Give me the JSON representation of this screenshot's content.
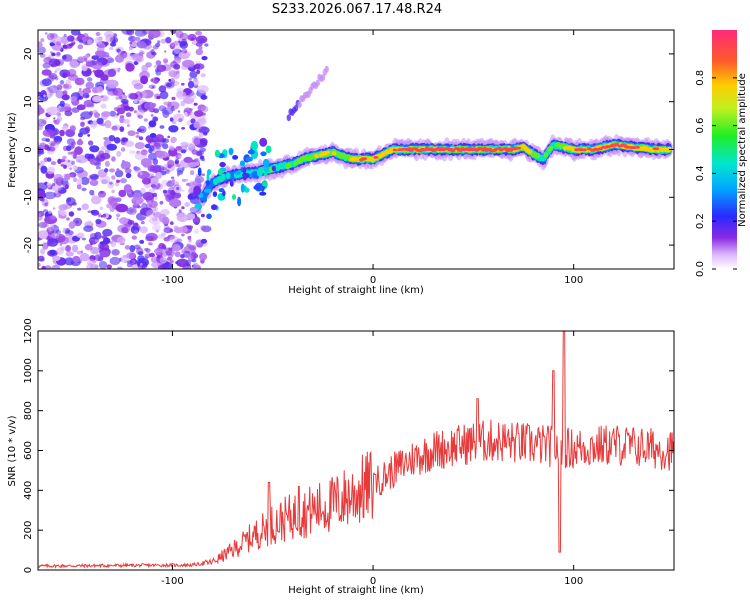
{
  "title": "S233.2026.067.17.48.R24",
  "colors": {
    "snr_line": "#e83a3a",
    "speckle": "#8a2be2",
    "ridge_core": "#ff2a2a",
    "axis": "#000000"
  },
  "chart_data": [
    {
      "type": "heatmap",
      "name": "spectrogram",
      "xlabel": "Height of straight line (km)",
      "ylabel": "Frequency (Hz)",
      "xlim": [
        -167,
        150
      ],
      "ylim": [
        -25,
        25
      ],
      "xticks": [
        -100,
        0,
        100
      ],
      "yticks": [
        -20,
        -10,
        0,
        10,
        20
      ],
      "colorbar": {
        "label": "Normalized spectral amplitude",
        "range": [
          0,
          1
        ],
        "ticks": [
          "0.0",
          "0.2",
          "0.4",
          "0.6",
          "0.8"
        ]
      },
      "ridge": {
        "x": [
          -85,
          -80,
          -75,
          -70,
          -65,
          -60,
          -55,
          -50,
          -45,
          -40,
          -35,
          -30,
          -25,
          -20,
          -15,
          -10,
          -5,
          0,
          5,
          10,
          20,
          30,
          40,
          50,
          60,
          70,
          75,
          80,
          85,
          88,
          90,
          95,
          100,
          110,
          120,
          130,
          140,
          148
        ],
        "freq": [
          -10,
          -7,
          -6,
          -5.5,
          -5,
          -5,
          -4.5,
          -4,
          -3.5,
          -3,
          -2,
          -1.5,
          -1,
          -0.5,
          -1.5,
          -2,
          -2,
          -2,
          -1,
          0,
          0,
          0,
          0,
          0,
          0,
          0,
          0.5,
          -1,
          -2,
          0,
          1,
          0.5,
          0,
          0,
          1,
          0.5,
          0,
          0
        ],
        "amplitude": [
          0.3,
          0.35,
          0.4,
          0.4,
          0.45,
          0.45,
          0.5,
          0.5,
          0.5,
          0.55,
          0.6,
          0.65,
          0.75,
          0.7,
          0.6,
          0.8,
          0.85,
          0.85,
          0.8,
          0.9,
          0.95,
          0.95,
          0.9,
          0.95,
          0.95,
          0.9,
          0.85,
          0.7,
          0.5,
          0.6,
          0.5,
          0.7,
          0.85,
          0.9,
          0.9,
          0.85,
          0.85,
          0.85
        ]
      },
      "noise_region_x": [
        -167,
        -83
      ],
      "noise_amplitude": [
        0.05,
        0.2
      ]
    },
    {
      "type": "line",
      "name": "snr",
      "xlabel": "Height of straight line (km)",
      "ylabel": "SNR (10 * v/v)",
      "xlim": [
        -167,
        150
      ],
      "ylim": [
        0,
        1200
      ],
      "xticks": [
        -100,
        0,
        100
      ],
      "yticks": [
        0,
        200,
        400,
        600,
        800,
        1000,
        1200
      ],
      "trend": {
        "x": [
          -167,
          -90,
          -80,
          -70,
          -60,
          -50,
          -40,
          -30,
          -20,
          -10,
          0,
          10,
          20,
          30,
          40,
          50,
          60,
          70,
          80,
          90,
          100,
          110,
          120,
          130,
          140,
          150
        ],
        "y": [
          20,
          25,
          40,
          100,
          170,
          230,
          270,
          300,
          330,
          380,
          430,
          500,
          560,
          600,
          620,
          640,
          650,
          640,
          630,
          620,
          610,
          620,
          630,
          620,
          610,
          600
        ]
      },
      "spikes": [
        {
          "x": -52,
          "y": 440
        },
        {
          "x": -37,
          "y": 420
        },
        {
          "x": 1,
          "y": 480
        },
        {
          "x": 52,
          "y": 860
        },
        {
          "x": 90,
          "y": 1000
        },
        {
          "x": 93,
          "y": 90
        },
        {
          "x": 95,
          "y": 1200
        }
      ]
    }
  ]
}
